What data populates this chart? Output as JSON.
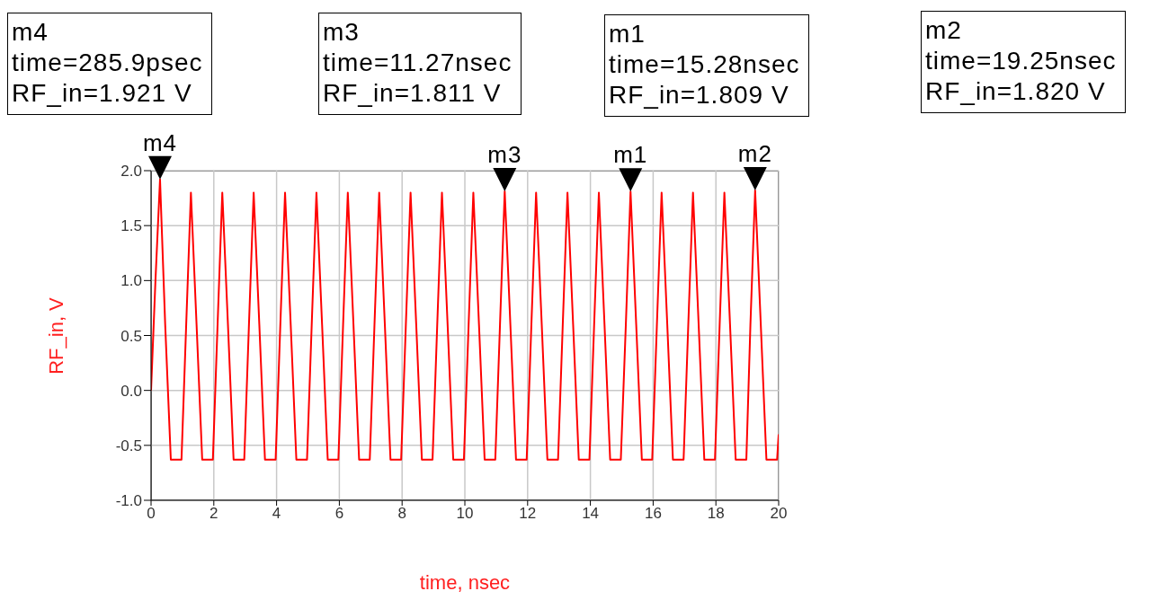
{
  "chart_data": {
    "type": "line",
    "xlabel": "time, nsec",
    "ylabel": "RF_in, V",
    "x": [
      0,
      0.14,
      0.2859,
      0.45,
      0.63,
      0.97,
      1.12,
      1.27,
      1.45,
      1.63,
      1.97,
      2.12,
      2.27,
      2.45,
      2.63,
      2.97,
      3.12,
      3.27,
      3.45,
      3.63,
      3.97,
      4.12,
      4.27,
      4.45,
      4.63,
      4.97,
      5.12,
      5.27,
      5.45,
      5.63,
      5.97,
      6.12,
      6.27,
      6.45,
      6.63,
      6.97,
      7.12,
      7.27,
      7.45,
      7.63,
      7.97,
      8.12,
      8.27,
      8.45,
      8.63,
      8.97,
      9.12,
      9.27,
      9.45,
      9.63,
      9.97,
      10.12,
      10.27,
      10.45,
      10.63,
      10.97,
      11.12,
      11.27,
      11.45,
      11.63,
      11.97,
      12.12,
      12.27,
      12.45,
      12.63,
      12.97,
      13.12,
      13.27,
      13.45,
      13.63,
      13.97,
      14.12,
      14.27,
      14.45,
      14.63,
      14.97,
      15.13,
      15.28,
      15.46,
      15.64,
      15.97,
      16.12,
      16.27,
      16.45,
      16.63,
      16.97,
      17.12,
      17.27,
      17.45,
      17.63,
      17.97,
      18.12,
      18.27,
      18.45,
      18.63,
      18.97,
      19.1,
      19.25,
      19.43,
      19.61,
      19.95,
      20
    ],
    "series": [
      {
        "color": "#ff0000",
        "values": [
          0,
          1.0,
          1.921,
          0.6,
          -0.63,
          -0.63,
          0.6,
          1.8,
          0.6,
          -0.63,
          -0.63,
          0.6,
          1.8,
          0.6,
          -0.63,
          -0.63,
          0.6,
          1.8,
          0.6,
          -0.63,
          -0.63,
          0.6,
          1.8,
          0.6,
          -0.63,
          -0.63,
          0.6,
          1.8,
          0.6,
          -0.63,
          -0.63,
          0.6,
          1.8,
          0.6,
          -0.63,
          -0.63,
          0.6,
          1.8,
          0.6,
          -0.63,
          -0.63,
          0.6,
          1.8,
          0.6,
          -0.63,
          -0.63,
          0.6,
          1.8,
          0.6,
          -0.63,
          -0.63,
          0.6,
          1.8,
          0.6,
          -0.63,
          -0.63,
          0.6,
          1.811,
          0.6,
          -0.63,
          -0.63,
          0.6,
          1.8,
          0.6,
          -0.63,
          -0.63,
          0.6,
          1.8,
          0.6,
          -0.63,
          -0.63,
          0.6,
          1.8,
          0.6,
          -0.63,
          -0.63,
          0.6,
          1.809,
          0.6,
          -0.63,
          -0.63,
          0.6,
          1.8,
          0.6,
          -0.63,
          -0.63,
          0.6,
          1.8,
          0.6,
          -0.63,
          -0.63,
          0.6,
          1.8,
          0.6,
          -0.63,
          -0.63,
          0.6,
          1.82,
          0.6,
          -0.63,
          -0.63,
          -0.4
        ]
      }
    ],
    "xlim": [
      0,
      20
    ],
    "xticks": [
      0,
      2,
      4,
      6,
      8,
      10,
      12,
      14,
      16,
      18,
      20
    ],
    "ylim": [
      -1,
      2
    ],
    "yticks": [
      {
        "value": -1,
        "label": "-1.0"
      },
      {
        "value": -0.5,
        "label": "-0.5"
      },
      {
        "value": 0,
        "label": "0.0"
      },
      {
        "value": 0.5,
        "label": "0.5"
      },
      {
        "value": 1,
        "label": "1.0"
      },
      {
        "value": 1.5,
        "label": "1.5"
      },
      {
        "value": 2,
        "label": "2.0"
      }
    ],
    "grid": true,
    "marker": "none",
    "line_style": "solid",
    "annotations": [
      "m4\ntime=285.9psec\nRF_in=1.921 V",
      "m3\ntime=11.27nsec\nRF_in=1.811 V",
      "m1\ntime=15.28nsec\nRF_in=1.809 V",
      "m2\ntime=19.25nsec\nRF_in=1.820 V",
      {
        "text": "m4",
        "x": 0.2859,
        "y": 1.921
      },
      {
        "text": "m3",
        "x": 11.27,
        "y": 1.811
      },
      {
        "text": "m1",
        "x": 15.28,
        "y": 1.809
      },
      {
        "text": "m2",
        "x": 19.25,
        "y": 1.82
      }
    ]
  }
}
